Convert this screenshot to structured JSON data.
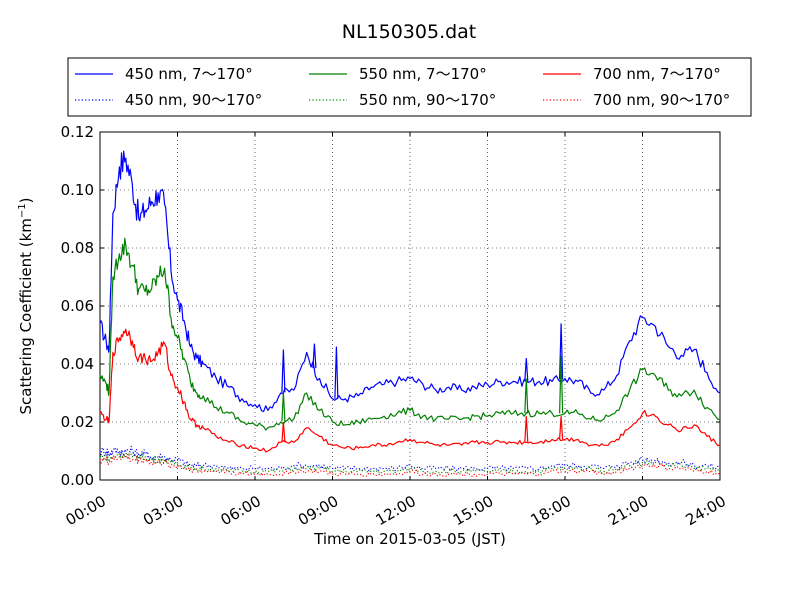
{
  "chart_data": {
    "type": "line",
    "title": "NL150305.dat",
    "xlabel": "Time on 2015-03-05 (JST)",
    "ylabel_main": "Scattering Coefficient (km",
    "ylabel_sup": "−1",
    "ylabel_end": ")",
    "xlim": [
      0,
      24
    ],
    "ylim": [
      0,
      0.12
    ],
    "grid": true,
    "legend_position": "top, above plot (3 columns)",
    "x_ticks": [
      {
        "value": 0,
        "label": "00:00"
      },
      {
        "value": 3,
        "label": "03:00"
      },
      {
        "value": 6,
        "label": "06:00"
      },
      {
        "value": 9,
        "label": "09:00"
      },
      {
        "value": 12,
        "label": "12:00"
      },
      {
        "value": 15,
        "label": "15:00"
      },
      {
        "value": 18,
        "label": "18:00"
      },
      {
        "value": 21,
        "label": "21:00"
      },
      {
        "value": 24,
        "label": "24:00"
      }
    ],
    "y_ticks": [
      {
        "value": 0,
        "label": "0.00"
      },
      {
        "value": 0.02,
        "label": "0.02"
      },
      {
        "value": 0.04,
        "label": "0.04"
      },
      {
        "value": 0.06,
        "label": "0.06"
      },
      {
        "value": 0.08,
        "label": "0.08"
      },
      {
        "value": 0.1,
        "label": "0.10"
      },
      {
        "value": 0.12,
        "label": "0.12"
      }
    ],
    "x": [
      0,
      0.25,
      0.35,
      0.5,
      0.75,
      1.0,
      1.25,
      1.5,
      1.75,
      2.0,
      2.25,
      2.5,
      2.75,
      3.0,
      3.25,
      3.5,
      3.75,
      4.0,
      4.5,
      5.0,
      5.5,
      6.0,
      6.5,
      7.0,
      7.5,
      8.0,
      8.5,
      9.0,
      9.5,
      10.0,
      10.5,
      11.0,
      11.5,
      12.0,
      12.5,
      13.0,
      13.5,
      14.0,
      14.5,
      15.0,
      15.5,
      16.0,
      16.5,
      17.0,
      17.5,
      18.0,
      18.5,
      19.0,
      19.5,
      20.0,
      20.5,
      21.0,
      21.5,
      22.0,
      22.5,
      23.0,
      23.5,
      24.0
    ],
    "series": [
      {
        "name": "450 nm, 7～170°",
        "color": "#0000ff",
        "style": "solid",
        "values": [
          0.054,
          0.047,
          0.045,
          0.092,
          0.108,
          0.111,
          0.102,
          0.09,
          0.093,
          0.096,
          0.099,
          0.095,
          0.072,
          0.062,
          0.055,
          0.046,
          0.042,
          0.04,
          0.035,
          0.032,
          0.028,
          0.026,
          0.024,
          0.03,
          0.031,
          0.044,
          0.035,
          0.028,
          0.028,
          0.029,
          0.032,
          0.033,
          0.034,
          0.035,
          0.033,
          0.031,
          0.032,
          0.031,
          0.032,
          0.033,
          0.034,
          0.034,
          0.034,
          0.034,
          0.034,
          0.035,
          0.034,
          0.03,
          0.031,
          0.036,
          0.048,
          0.056,
          0.053,
          0.046,
          0.043,
          0.045,
          0.037,
          0.03
        ]
      },
      {
        "name": "450 nm, 90～170°",
        "color": "#0000ff",
        "style": "dotted",
        "values": [
          0.01,
          0.01,
          0.009,
          0.01,
          0.01,
          0.01,
          0.01,
          0.009,
          0.009,
          0.008,
          0.008,
          0.008,
          0.007,
          0.007,
          0.006,
          0.005,
          0.005,
          0.005,
          0.005,
          0.004,
          0.004,
          0.004,
          0.004,
          0.004,
          0.005,
          0.005,
          0.005,
          0.004,
          0.004,
          0.004,
          0.004,
          0.004,
          0.004,
          0.005,
          0.004,
          0.004,
          0.004,
          0.004,
          0.004,
          0.004,
          0.004,
          0.004,
          0.004,
          0.004,
          0.005,
          0.005,
          0.005,
          0.005,
          0.004,
          0.005,
          0.006,
          0.007,
          0.007,
          0.006,
          0.006,
          0.005,
          0.005,
          0.004
        ]
      },
      {
        "name": "550 nm, 7～170°",
        "color": "#008000",
        "style": "solid",
        "values": [
          0.036,
          0.033,
          0.03,
          0.07,
          0.078,
          0.081,
          0.074,
          0.066,
          0.065,
          0.066,
          0.07,
          0.073,
          0.056,
          0.049,
          0.042,
          0.034,
          0.03,
          0.029,
          0.025,
          0.023,
          0.02,
          0.019,
          0.018,
          0.02,
          0.021,
          0.03,
          0.024,
          0.02,
          0.019,
          0.02,
          0.021,
          0.022,
          0.023,
          0.024,
          0.022,
          0.021,
          0.021,
          0.021,
          0.022,
          0.022,
          0.023,
          0.023,
          0.023,
          0.023,
          0.023,
          0.023,
          0.023,
          0.021,
          0.021,
          0.024,
          0.031,
          0.038,
          0.036,
          0.031,
          0.029,
          0.031,
          0.025,
          0.021
        ]
      },
      {
        "name": "550 nm, 90～170°",
        "color": "#008000",
        "style": "dotted",
        "values": [
          0.008,
          0.008,
          0.007,
          0.008,
          0.009,
          0.009,
          0.008,
          0.008,
          0.008,
          0.007,
          0.007,
          0.007,
          0.006,
          0.006,
          0.005,
          0.004,
          0.004,
          0.004,
          0.004,
          0.003,
          0.003,
          0.003,
          0.003,
          0.003,
          0.004,
          0.004,
          0.004,
          0.003,
          0.003,
          0.003,
          0.003,
          0.003,
          0.003,
          0.004,
          0.003,
          0.003,
          0.003,
          0.003,
          0.003,
          0.003,
          0.003,
          0.003,
          0.003,
          0.003,
          0.004,
          0.004,
          0.004,
          0.004,
          0.003,
          0.004,
          0.005,
          0.006,
          0.006,
          0.005,
          0.005,
          0.004,
          0.004,
          0.003
        ]
      },
      {
        "name": "700 nm, 7～170°",
        "color": "#ff0000",
        "style": "solid",
        "values": [
          0.023,
          0.021,
          0.02,
          0.044,
          0.049,
          0.052,
          0.048,
          0.042,
          0.042,
          0.041,
          0.044,
          0.047,
          0.036,
          0.032,
          0.027,
          0.021,
          0.019,
          0.018,
          0.015,
          0.013,
          0.012,
          0.011,
          0.01,
          0.013,
          0.013,
          0.018,
          0.015,
          0.012,
          0.011,
          0.011,
          0.012,
          0.012,
          0.013,
          0.014,
          0.013,
          0.012,
          0.012,
          0.012,
          0.013,
          0.013,
          0.013,
          0.013,
          0.013,
          0.013,
          0.014,
          0.014,
          0.014,
          0.012,
          0.012,
          0.014,
          0.018,
          0.023,
          0.022,
          0.019,
          0.017,
          0.019,
          0.015,
          0.012
        ]
      },
      {
        "name": "700 nm, 90～170°",
        "color": "#ff0000",
        "style": "dotted",
        "values": [
          0.007,
          0.007,
          0.006,
          0.007,
          0.008,
          0.008,
          0.007,
          0.007,
          0.007,
          0.006,
          0.006,
          0.006,
          0.005,
          0.005,
          0.004,
          0.004,
          0.003,
          0.003,
          0.003,
          0.003,
          0.002,
          0.002,
          0.002,
          0.002,
          0.003,
          0.003,
          0.003,
          0.002,
          0.002,
          0.002,
          0.002,
          0.002,
          0.002,
          0.003,
          0.002,
          0.002,
          0.002,
          0.002,
          0.002,
          0.002,
          0.002,
          0.002,
          0.002,
          0.002,
          0.003,
          0.003,
          0.003,
          0.003,
          0.002,
          0.003,
          0.004,
          0.005,
          0.005,
          0.004,
          0.004,
          0.003,
          0.003,
          0.002
        ]
      }
    ],
    "spikes": [
      {
        "series": 0,
        "x": 7.1,
        "y": 0.045
      },
      {
        "series": 0,
        "x": 8.3,
        "y": 0.047
      },
      {
        "series": 0,
        "x": 9.15,
        "y": 0.046
      },
      {
        "series": 0,
        "x": 16.5,
        "y": 0.042
      },
      {
        "series": 0,
        "x": 17.85,
        "y": 0.054
      },
      {
        "series": 2,
        "x": 7.1,
        "y": 0.03
      },
      {
        "series": 2,
        "x": 16.5,
        "y": 0.035
      },
      {
        "series": 2,
        "x": 17.85,
        "y": 0.043
      },
      {
        "series": 4,
        "x": 7.1,
        "y": 0.02
      },
      {
        "series": 4,
        "x": 16.5,
        "y": 0.022
      },
      {
        "series": 4,
        "x": 17.85,
        "y": 0.022
      }
    ]
  }
}
